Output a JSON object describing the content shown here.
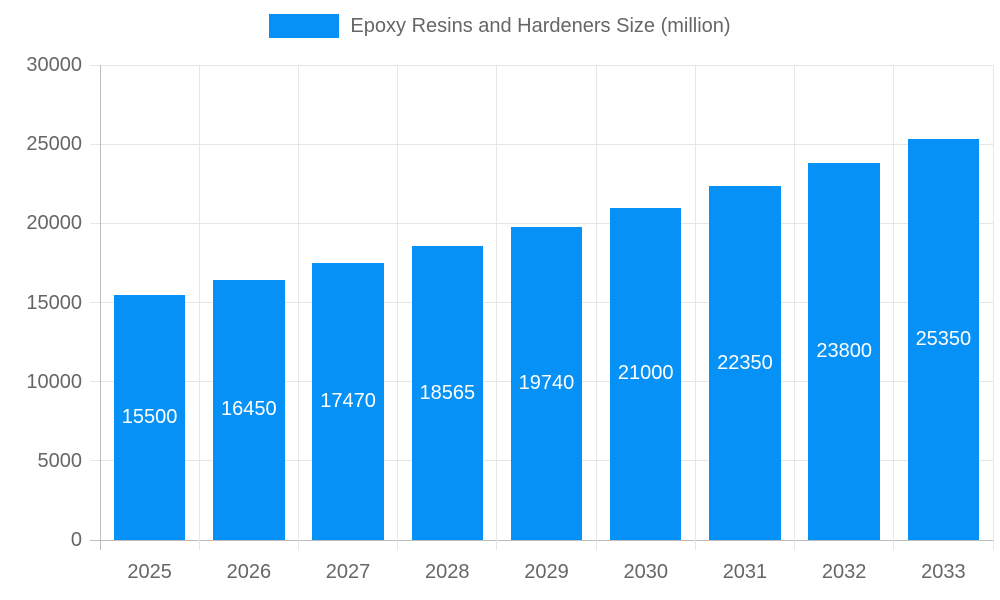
{
  "chart_data": {
    "type": "bar",
    "title": "Epoxy Resins and Hardeners Size (million)",
    "categories": [
      "2025",
      "2026",
      "2027",
      "2028",
      "2029",
      "2030",
      "2031",
      "2032",
      "2033"
    ],
    "series": [
      {
        "name": "Epoxy Resins and Hardeners Size (million)",
        "values": [
          15500,
          16450,
          17470,
          18565,
          19740,
          21000,
          22350,
          23800,
          25350
        ]
      }
    ],
    "value_labels": [
      "15500",
      "16450",
      "17470",
      "18565",
      "19740",
      "21000",
      "22350",
      "23800",
      "25350"
    ],
    "xlabel": "",
    "ylabel": "",
    "ylim": [
      0,
      30000
    ],
    "ytick_step": 5000,
    "ytick_labels": [
      "0",
      "5000",
      "10000",
      "15000",
      "20000",
      "25000",
      "30000"
    ],
    "grid": "on",
    "legend_position": "top-center",
    "colors": {
      "bar": "#0591f5",
      "value_label": "#ffffff",
      "axis_text": "#666666",
      "gridline": "#e6e6e6",
      "zero_line": "#bdbdbd",
      "background": "#ffffff"
    }
  }
}
